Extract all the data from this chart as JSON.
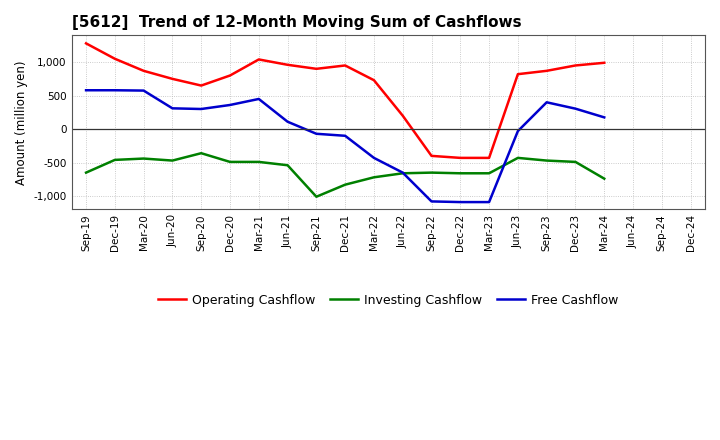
{
  "title": "[5612]  Trend of 12-Month Moving Sum of Cashflows",
  "ylabel": "Amount (million yen)",
  "x_labels": [
    "Sep-19",
    "Dec-19",
    "Mar-20",
    "Jun-20",
    "Sep-20",
    "Dec-20",
    "Mar-21",
    "Jun-21",
    "Sep-21",
    "Dec-21",
    "Mar-22",
    "Jun-22",
    "Sep-22",
    "Dec-22",
    "Mar-23",
    "Jun-23",
    "Sep-23",
    "Dec-23",
    "Mar-24",
    "Jun-24",
    "Sep-24",
    "Dec-24"
  ],
  "operating": [
    1280,
    1050,
    870,
    750,
    650,
    800,
    1040,
    960,
    900,
    950,
    730,
    200,
    -400,
    -430,
    -430,
    820,
    870,
    950,
    990,
    null,
    null,
    null
  ],
  "investing": [
    -650,
    -460,
    -440,
    -470,
    -360,
    -490,
    -490,
    -540,
    -1010,
    -830,
    -720,
    -660,
    -650,
    -660,
    -660,
    -430,
    -470,
    -490,
    -740,
    null,
    null,
    null
  ],
  "free": [
    580,
    580,
    575,
    310,
    300,
    360,
    450,
    110,
    -70,
    -100,
    -430,
    -650,
    -1080,
    -1090,
    -1090,
    -30,
    400,
    305,
    175,
    null,
    null,
    null
  ],
  "operating_color": "#ff0000",
  "investing_color": "#008000",
  "free_color": "#0000cd",
  "ylim": [
    -1200,
    1400
  ],
  "yticks": [
    -1000,
    -500,
    0,
    500,
    1000
  ],
  "grid_color": "#bbbbbb",
  "zero_line_color": "#333333",
  "spine_color": "#555555"
}
